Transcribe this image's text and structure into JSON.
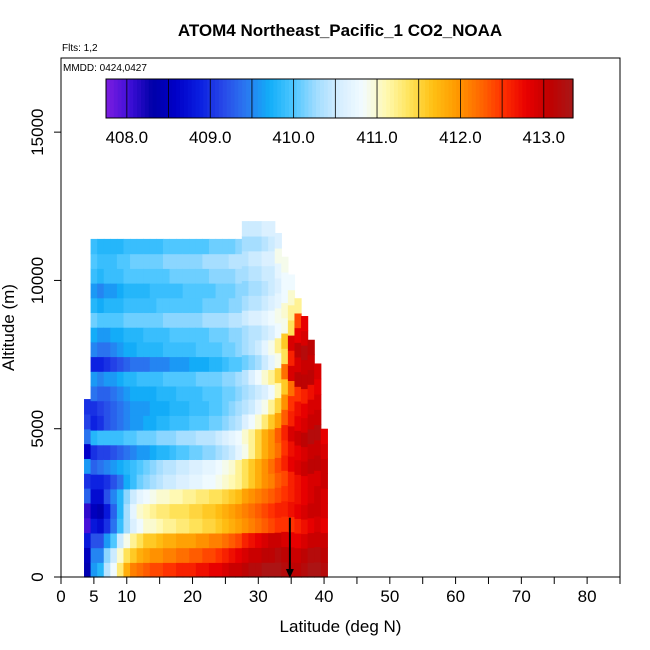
{
  "chart_data": {
    "type": "heatmap",
    "title": "ATOM4 Northeast_Pacific_1 CO2_NOAA",
    "flights_text": "Flts: 1,2",
    "mmdd_text": "MMDD: 0424,0427",
    "xlabel": "Latitude (deg N)",
    "ylabel": "Altitude (m)",
    "xlim": [
      0,
      85
    ],
    "ylim": [
      0,
      17500
    ],
    "x_tick_values": [
      0,
      5,
      10,
      20,
      30,
      40,
      50,
      60,
      70,
      80
    ],
    "x_tick_labels": [
      "0",
      "5",
      "10",
      "20",
      "30",
      "40",
      "50",
      "60",
      "70",
      "80"
    ],
    "y_tick_values": [
      0,
      5000,
      10000,
      15000
    ],
    "y_tick_labels": [
      "0",
      "5000",
      "10000",
      "15000"
    ],
    "colorbar": {
      "range": [
        407.75,
        413.35
      ],
      "tick_values": [
        408.0,
        409.0,
        410.0,
        411.0,
        412.0,
        413.0
      ],
      "tick_labels": [
        "408.0",
        "409.0",
        "410.0",
        "411.0",
        "412.0",
        "413.0"
      ],
      "colors": [
        "#7d1de0",
        "#3f0fd8",
        "#0000a8",
        "#0000c8",
        "#0a1ee0",
        "#2848e8",
        "#2a78f0",
        "#12aef8",
        "#4cc6ff",
        "#a0dcff",
        "#d6eeff",
        "#f2fbff",
        "#fff9b0",
        "#ffe35a",
        "#ffc014",
        "#ff9a00",
        "#ff6a00",
        "#ff3000",
        "#e80000",
        "#c00000",
        "#a81818"
      ]
    },
    "grid": false,
    "marker": {
      "x": 34.8,
      "y": 500,
      "symbol": "down-arrow"
    },
    "columns": [
      {
        "lat": 4.0,
        "top": 6000,
        "values": [
          408.4,
          408.5,
          408.8,
          408.0,
          408.1,
          409.3,
          409.0,
          409.6,
          408.6,
          409.4,
          409.1,
          409.0
        ]
      },
      {
        "lat": 5.0,
        "top": 11400,
        "values": [
          409.6,
          409.5,
          409.2,
          408.8,
          408.5,
          408.7,
          408.9,
          409.3,
          409.0,
          409.8,
          408.9,
          409.0,
          409.4,
          409.6,
          408.9,
          409.5,
          409.7,
          410.1,
          409.8,
          409.6,
          409.9,
          410.0,
          409.9
        ]
      },
      {
        "lat": 6.0,
        "top": 11400,
        "values": [
          409.8,
          409.5,
          409.2,
          408.7,
          408.4,
          408.7,
          408.9,
          409.4,
          409.1,
          409.9,
          409.0,
          409.1,
          409.3,
          409.5,
          408.9,
          409.4,
          409.6,
          410.0,
          409.7,
          409.5,
          409.8,
          409.9,
          409.8
        ]
      },
      {
        "lat": 7.0,
        "top": 11400,
        "values": [
          410.4,
          410.2,
          409.6,
          409.0,
          408.8,
          409.2,
          409.0,
          409.5,
          409.1,
          409.9,
          409.2,
          409.2,
          409.3,
          409.6,
          409.0,
          409.4,
          409.6,
          410.0,
          409.8,
          409.6,
          409.9,
          409.9,
          409.8
        ]
      },
      {
        "lat": 8.0,
        "top": 11400,
        "values": [
          410.8,
          410.5,
          410.0,
          409.4,
          409.3,
          409.5,
          409.2,
          409.6,
          409.2,
          409.9,
          409.3,
          409.3,
          409.4,
          409.6,
          409.1,
          409.5,
          409.7,
          410.0,
          409.8,
          409.6,
          409.9,
          409.9,
          409.8
        ]
      },
      {
        "lat": 9.0,
        "top": 11400,
        "values": [
          411.3,
          411.0,
          410.5,
          409.9,
          409.8,
          409.8,
          409.4,
          409.7,
          409.3,
          409.9,
          409.4,
          409.4,
          409.5,
          409.7,
          409.2,
          409.6,
          409.7,
          410.0,
          409.8,
          409.7,
          409.9,
          410.0,
          409.8
        ]
      },
      {
        "lat": 10.0,
        "top": 11400,
        "values": [
          411.8,
          411.4,
          410.9,
          410.3,
          410.3,
          410.2,
          409.7,
          409.8,
          409.4,
          410.0,
          409.5,
          409.5,
          409.6,
          409.8,
          409.3,
          409.7,
          409.8,
          410.1,
          409.9,
          409.8,
          410.0,
          410.0,
          409.9
        ]
      },
      {
        "lat": 11.0,
        "top": 11400,
        "values": [
          412.1,
          411.6,
          411.2,
          410.6,
          410.7,
          410.5,
          409.9,
          409.9,
          409.5,
          410.0,
          409.6,
          409.6,
          409.7,
          409.8,
          409.4,
          409.7,
          409.8,
          410.1,
          409.9,
          409.8,
          410.0,
          410.1,
          409.9
        ]
      },
      {
        "lat": 12.0,
        "top": 11400,
        "values": [
          412.2,
          411.8,
          411.4,
          410.8,
          411.0,
          410.7,
          410.1,
          410.0,
          409.6,
          410.1,
          409.6,
          409.6,
          409.7,
          409.9,
          409.4,
          409.8,
          409.8,
          410.1,
          409.9,
          409.8,
          410.0,
          410.1,
          409.9
        ]
      },
      {
        "lat": 13.0,
        "top": 11400,
        "values": [
          412.3,
          411.9,
          411.6,
          411.0,
          411.1,
          410.8,
          410.2,
          410.1,
          409.6,
          410.1,
          409.7,
          409.6,
          409.7,
          409.9,
          409.4,
          409.8,
          409.9,
          410.1,
          409.9,
          409.8,
          410.0,
          410.1,
          409.9
        ]
      },
      {
        "lat": 14.0,
        "top": 11400,
        "values": [
          412.4,
          412.0,
          411.6,
          411.0,
          411.2,
          410.9,
          410.3,
          410.2,
          409.7,
          410.1,
          409.7,
          409.7,
          409.7,
          409.9,
          409.5,
          409.8,
          409.9,
          410.1,
          409.9,
          409.9,
          410.0,
          410.1,
          409.9
        ]
      },
      {
        "lat": 15.0,
        "top": 11400,
        "values": [
          412.4,
          412.0,
          411.7,
          411.1,
          411.3,
          411.0,
          410.4,
          410.3,
          409.8,
          410.2,
          409.8,
          409.7,
          409.8,
          409.9,
          409.5,
          409.8,
          409.9,
          410.1,
          410.0,
          409.9,
          410.0,
          410.1,
          409.9
        ]
      },
      {
        "lat": 16.0,
        "top": 11400,
        "values": [
          412.5,
          412.1,
          411.8,
          411.2,
          411.3,
          411.0,
          410.5,
          410.4,
          409.8,
          410.2,
          409.8,
          409.7,
          409.8,
          410.0,
          409.5,
          409.9,
          409.9,
          410.2,
          410.0,
          409.9,
          410.0,
          410.2,
          410.0
        ]
      },
      {
        "lat": 17.0,
        "top": 11400,
        "values": [
          412.5,
          412.1,
          411.8,
          411.2,
          411.4,
          411.1,
          410.5,
          410.4,
          409.9,
          410.2,
          409.9,
          409.8,
          409.8,
          410.0,
          409.6,
          409.9,
          410.0,
          410.2,
          410.0,
          409.9,
          410.1,
          410.2,
          410.0
        ]
      },
      {
        "lat": 18.0,
        "top": 11400,
        "values": [
          412.6,
          412.2,
          411.9,
          411.3,
          411.4,
          411.1,
          410.6,
          410.5,
          410.0,
          410.3,
          409.9,
          409.8,
          409.9,
          410.0,
          409.6,
          409.9,
          410.0,
          410.2,
          410.0,
          409.9,
          410.1,
          410.2,
          410.0
        ]
      },
      {
        "lat": 19.0,
        "top": 11400,
        "values": [
          412.6,
          412.2,
          411.9,
          411.3,
          411.4,
          411.2,
          410.6,
          410.5,
          410.0,
          410.3,
          409.9,
          409.8,
          409.9,
          410.0,
          409.6,
          409.9,
          410.0,
          410.2,
          410.0,
          410.0,
          410.1,
          410.2,
          410.0
        ]
      },
      {
        "lat": 20.0,
        "top": 11400,
        "values": [
          412.6,
          412.3,
          411.9,
          411.4,
          411.5,
          411.2,
          410.7,
          410.6,
          410.1,
          410.3,
          410.0,
          409.9,
          409.9,
          410.0,
          409.7,
          409.9,
          410.0,
          410.2,
          410.0,
          410.0,
          410.1,
          410.2,
          410.0
        ]
      },
      {
        "lat": 21.0,
        "top": 11400,
        "values": [
          412.7,
          412.3,
          412.0,
          411.4,
          411.5,
          411.3,
          410.7,
          410.6,
          410.1,
          410.4,
          410.0,
          409.9,
          409.9,
          410.1,
          409.7,
          410.0,
          410.0,
          410.2,
          410.0,
          410.0,
          410.1,
          410.2,
          410.0
        ]
      },
      {
        "lat": 22.0,
        "top": 11400,
        "values": [
          412.7,
          412.4,
          412.0,
          411.5,
          411.6,
          411.3,
          410.8,
          410.7,
          410.2,
          410.4,
          410.0,
          409.9,
          410.0,
          410.1,
          409.7,
          410.0,
          410.0,
          410.3,
          410.1,
          410.0,
          410.1,
          410.3,
          410.0
        ]
      },
      {
        "lat": 23.0,
        "top": 11400,
        "values": [
          412.8,
          412.4,
          412.1,
          411.5,
          411.6,
          411.4,
          410.8,
          410.7,
          410.2,
          410.4,
          410.1,
          410.0,
          410.0,
          410.1,
          409.8,
          410.0,
          410.1,
          410.3,
          410.1,
          410.0,
          410.2,
          410.3,
          410.1
        ]
      },
      {
        "lat": 24.0,
        "top": 11400,
        "values": [
          412.8,
          412.5,
          412.1,
          411.6,
          411.7,
          411.4,
          410.9,
          410.8,
          410.3,
          410.5,
          410.1,
          410.0,
          410.0,
          410.1,
          409.8,
          410.0,
          410.1,
          410.3,
          410.1,
          410.1,
          410.2,
          410.3,
          410.1
        ]
      },
      {
        "lat": 25.0,
        "top": 11400,
        "values": [
          412.9,
          412.6,
          412.2,
          411.7,
          411.8,
          411.5,
          411.0,
          410.9,
          410.4,
          410.6,
          410.2,
          410.1,
          410.1,
          410.2,
          409.9,
          410.1,
          410.1,
          410.3,
          410.1,
          410.1,
          410.2,
          410.3,
          410.1
        ]
      },
      {
        "lat": 26.0,
        "top": 11400,
        "values": [
          413.0,
          412.7,
          412.3,
          411.8,
          411.9,
          411.6,
          411.1,
          411.0,
          410.5,
          410.7,
          410.3,
          410.2,
          410.1,
          410.2,
          410.0,
          410.1,
          410.2,
          410.4,
          410.2,
          410.1,
          410.2,
          410.4,
          410.1
        ]
      },
      {
        "lat": 27.0,
        "top": 11400,
        "values": [
          413.0,
          412.8,
          412.4,
          411.9,
          412.0,
          411.7,
          411.2,
          411.2,
          410.7,
          410.8,
          410.4,
          410.3,
          410.2,
          410.3,
          410.0,
          410.2,
          410.2,
          410.4,
          410.2,
          410.2,
          410.3,
          410.4,
          410.2
        ]
      },
      {
        "lat": 28.0,
        "top": 12000,
        "values": [
          413.1,
          412.9,
          412.6,
          412.0,
          412.1,
          411.9,
          411.4,
          411.4,
          410.9,
          411.0,
          410.6,
          410.4,
          410.3,
          410.4,
          410.1,
          410.3,
          410.3,
          410.5,
          410.3,
          410.2,
          410.3,
          410.4,
          410.3,
          410.5
        ]
      },
      {
        "lat": 29.0,
        "top": 12000,
        "values": [
          413.2,
          413.0,
          412.7,
          412.1,
          412.2,
          412.0,
          411.6,
          411.6,
          411.2,
          411.2,
          410.8,
          410.5,
          410.4,
          410.6,
          410.2,
          410.4,
          410.4,
          410.6,
          410.4,
          410.3,
          410.4,
          410.5,
          410.3,
          410.5
        ]
      },
      {
        "lat": 30.0,
        "top": 12000,
        "values": [
          413.2,
          413.0,
          412.8,
          412.2,
          412.3,
          412.1,
          411.8,
          411.8,
          411.5,
          411.5,
          411.0,
          410.7,
          410.5,
          410.8,
          410.3,
          410.5,
          410.4,
          410.6,
          410.4,
          410.3,
          410.4,
          410.5,
          410.3,
          410.5
        ]
      },
      {
        "lat": 31.0,
        "top": 12000,
        "values": [
          413.3,
          413.1,
          412.9,
          412.3,
          412.4,
          412.2,
          412.0,
          412.0,
          411.8,
          411.8,
          411.3,
          410.9,
          410.6,
          411.0,
          410.5,
          410.7,
          410.5,
          410.7,
          410.5,
          410.4,
          410.5,
          410.6,
          410.4,
          410.6
        ]
      },
      {
        "lat": 32.0,
        "top": 12000,
        "values": [
          413.3,
          413.1,
          413.0,
          412.4,
          412.5,
          412.3,
          412.1,
          412.2,
          412.0,
          412.0,
          411.6,
          411.2,
          410.8,
          411.2,
          410.7,
          410.9,
          410.6,
          410.8,
          410.6,
          410.5,
          410.5,
          410.6,
          410.5,
          410.6
        ]
      },
      {
        "lat": 33.0,
        "top": 11600,
        "values": [
          413.3,
          413.2,
          413.0,
          412.5,
          412.6,
          412.4,
          412.3,
          412.4,
          412.2,
          412.3,
          411.9,
          411.5,
          411.1,
          411.5,
          410.9,
          411.2,
          410.8,
          410.9,
          410.7,
          410.6,
          410.7,
          410.9,
          410.6
        ]
      },
      {
        "lat": 34.0,
        "top": 10800,
        "values": [
          413.2,
          413.1,
          412.9,
          412.5,
          412.6,
          412.5,
          412.4,
          412.6,
          412.5,
          412.6,
          412.3,
          412.0,
          411.6,
          412.2,
          411.4,
          411.6,
          410.9,
          411.0,
          410.8,
          410.8,
          410.9
        ]
      },
      {
        "lat": 35.0,
        "top": 10200,
        "values": [
          413.1,
          413.0,
          412.8,
          412.5,
          412.7,
          412.6,
          412.6,
          412.8,
          412.7,
          412.9,
          412.6,
          412.5,
          412.2,
          412.9,
          412.6,
          412.9,
          411.4,
          411.2,
          411.0,
          410.8
        ]
      },
      {
        "lat": 36.0,
        "top": 9400,
        "values": [
          413.1,
          413.0,
          412.8,
          412.6,
          412.8,
          412.7,
          412.7,
          412.9,
          412.8,
          413.0,
          412.8,
          412.7,
          412.5,
          413.1,
          412.9,
          413.1,
          412.8,
          412.4,
          411.2
        ]
      },
      {
        "lat": 37.0,
        "top": 8800,
        "values": [
          413.2,
          413.1,
          412.9,
          412.7,
          412.9,
          412.8,
          412.8,
          413.0,
          412.9,
          413.1,
          412.9,
          412.8,
          412.6,
          413.1,
          413.0,
          413.2,
          412.9,
          412.8
        ]
      },
      {
        "lat": 38.0,
        "top": 8000,
        "values": [
          413.3,
          413.2,
          413.0,
          412.8,
          413.0,
          412.9,
          412.9,
          413.1,
          413.0,
          413.2,
          413.0,
          412.9,
          412.7,
          413.1,
          413.0,
          413.1
        ]
      },
      {
        "lat": 39.0,
        "top": 7200,
        "values": [
          413.3,
          413.2,
          413.0,
          412.9,
          413.0,
          413.0,
          412.9,
          413.1,
          413.0,
          413.2,
          413.0,
          412.9,
          412.8,
          412.9
        ]
      },
      {
        "lat": 40.0,
        "top": 5000,
        "values": [
          413.2,
          413.1,
          413.0,
          412.8,
          412.9,
          412.9,
          413.0,
          413.0,
          412.9,
          412.8
        ]
      }
    ]
  }
}
